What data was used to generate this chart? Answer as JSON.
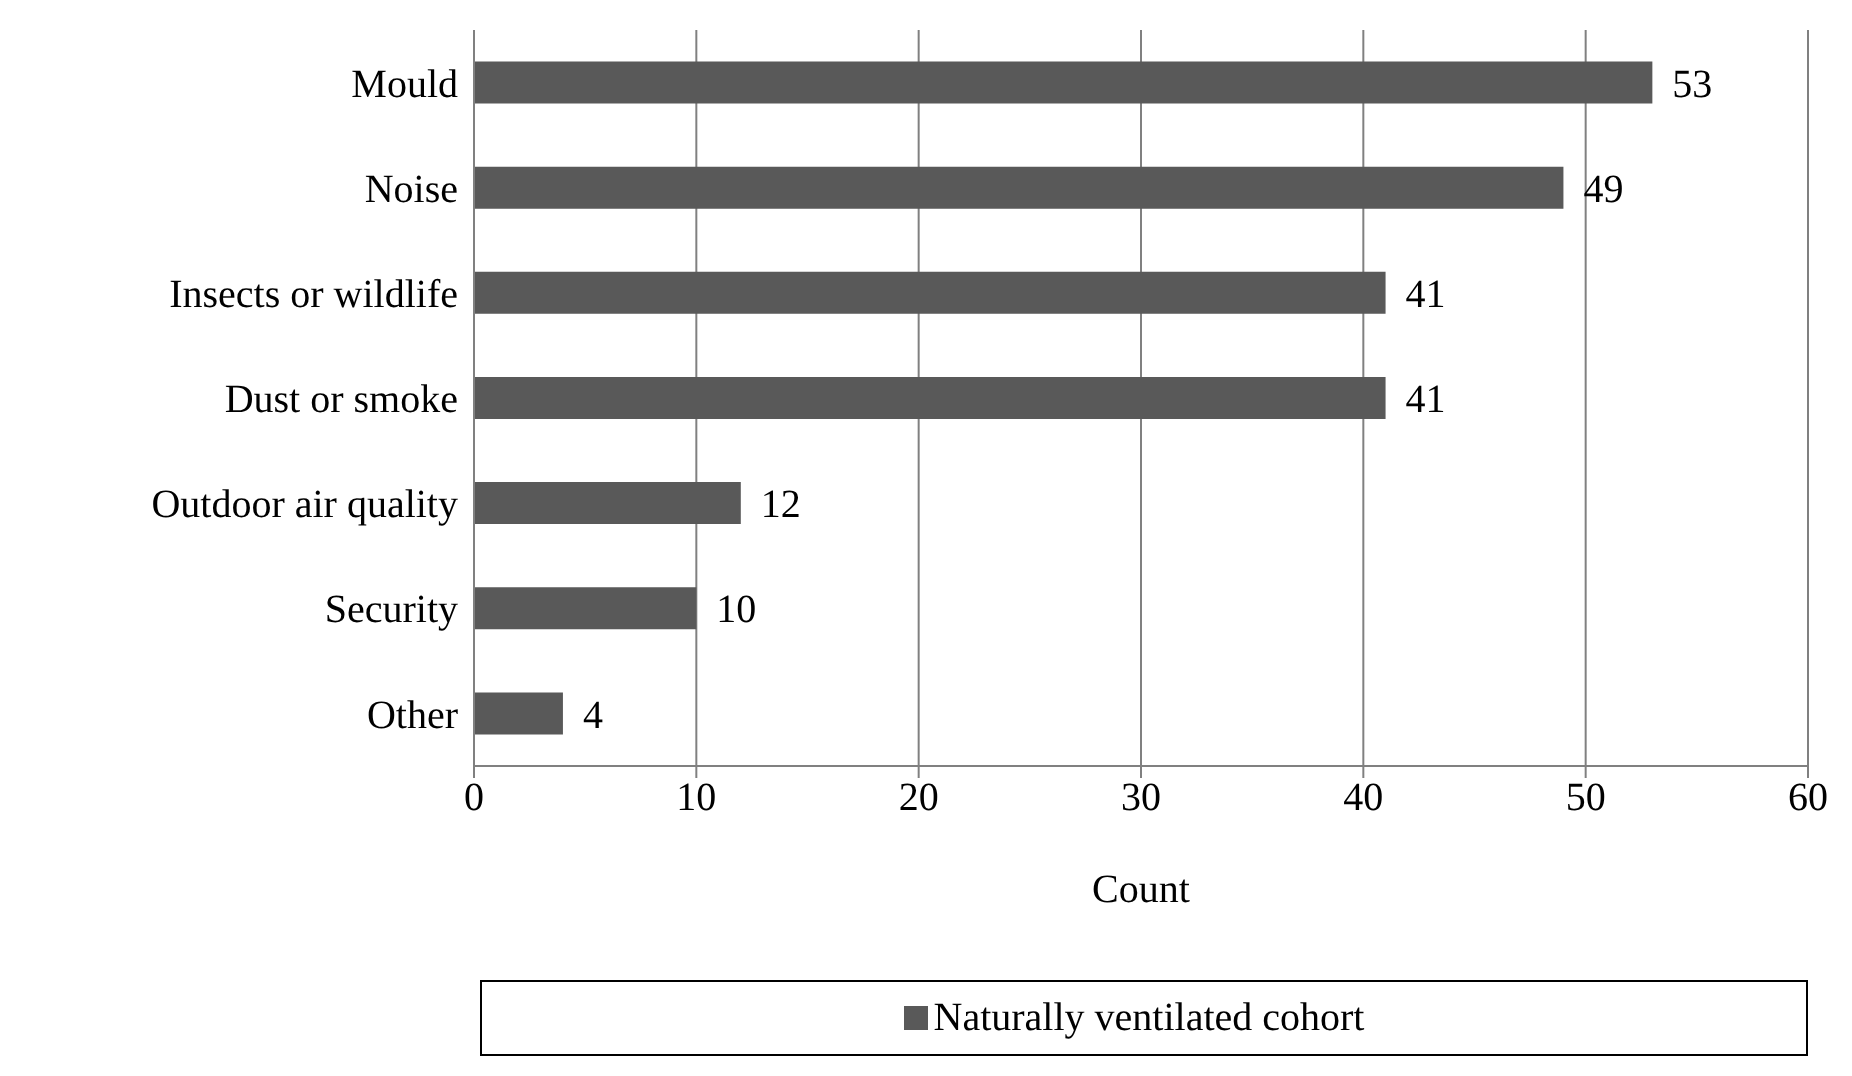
{
  "chart_data": {
    "type": "bar",
    "orientation": "horizontal",
    "xlabel": "Count",
    "categories": [
      "Mould",
      "Noise",
      "Insects or wildlife",
      "Dust or smoke",
      "Outdoor air quality",
      "Security",
      "Other"
    ],
    "series": [
      {
        "name": "Naturally ventilated cohort",
        "color": "#595959",
        "values": [
          53,
          49,
          41,
          41,
          12,
          10,
          4
        ]
      }
    ],
    "xlim": [
      0,
      60
    ],
    "xticks": [
      0,
      10,
      20,
      30,
      40,
      50,
      60
    ],
    "grid": "x",
    "legend": "bottom",
    "data_labels": true
  }
}
